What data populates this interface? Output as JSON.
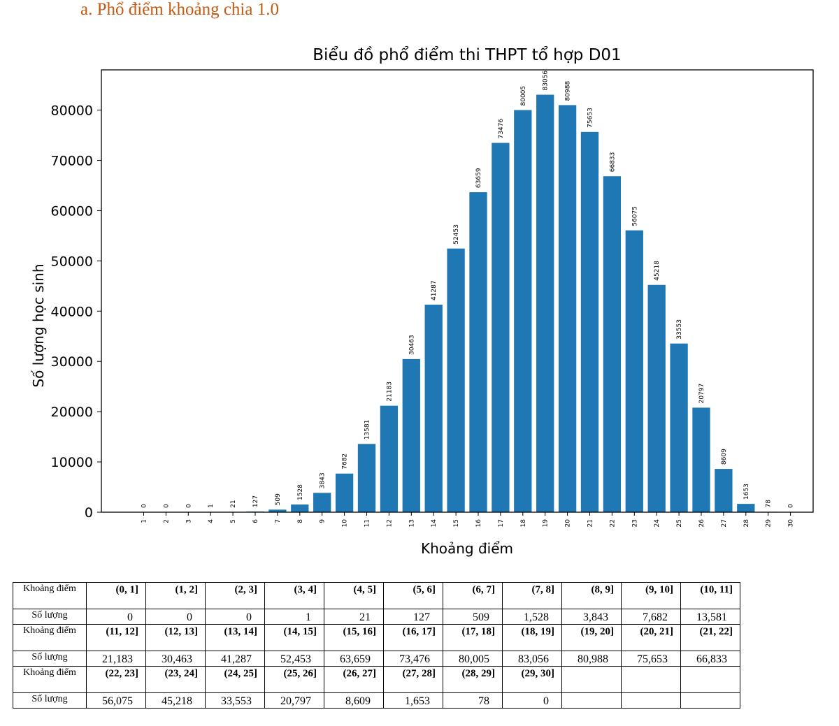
{
  "heading": "a.   Phổ điểm khoảng chia 1.0",
  "colors": {
    "bar": "#1f77b4",
    "heading": "#c55a11"
  },
  "chart_data": {
    "type": "bar",
    "title": "Biểu đồ phổ điểm thi THPT tổ hợp D01",
    "xlabel": "Khoảng điểm",
    "ylabel": "Số lượng học sinh",
    "categories": [
      "1",
      "2",
      "3",
      "4",
      "5",
      "6",
      "7",
      "8",
      "9",
      "10",
      "11",
      "12",
      "13",
      "14",
      "15",
      "16",
      "17",
      "18",
      "19",
      "20",
      "21",
      "22",
      "23",
      "24",
      "25",
      "26",
      "27",
      "28",
      "29",
      "30"
    ],
    "values": [
      0,
      0,
      0,
      1,
      21,
      127,
      509,
      1528,
      3843,
      7682,
      13581,
      21183,
      30463,
      41287,
      52453,
      63659,
      73476,
      80005,
      83056,
      80988,
      75653,
      66833,
      56075,
      45218,
      33553,
      20797,
      8609,
      1653,
      78,
      0
    ],
    "yticks": [
      "0",
      "10000",
      "20000",
      "30000",
      "40000",
      "50000",
      "60000",
      "70000",
      "80000"
    ],
    "ylim": [
      0,
      88000
    ],
    "legend": "none",
    "grid": false
  },
  "table": {
    "range_label": "Khoảng điểm",
    "count_label": "Số lượng",
    "blocks": [
      {
        "ranges": [
          "(0, 1]",
          "(1, 2]",
          "(2, 3]",
          "(3, 4]",
          "(4, 5]",
          "(5, 6]",
          "(6, 7]",
          "(7, 8]",
          "(8, 9]",
          "(9, 10]",
          "(10, 11]"
        ],
        "counts": [
          "0",
          "0",
          "0",
          "1",
          "21",
          "127",
          "509",
          "1,528",
          "3,843",
          "7,682",
          "13,581"
        ]
      },
      {
        "ranges": [
          "(11, 12]",
          "(12, 13]",
          "(13, 14]",
          "(14, 15]",
          "(15, 16]",
          "(16, 17]",
          "(17, 18]",
          "(18, 19]",
          "(19, 20]",
          "(20, 21]",
          "(21, 22]"
        ],
        "counts": [
          "21,183",
          "30,463",
          "41,287",
          "52,453",
          "63,659",
          "73,476",
          "80,005",
          "83,056",
          "80,988",
          "75,653",
          "66,833"
        ]
      },
      {
        "ranges": [
          "(22, 23]",
          "(23, 24]",
          "(24, 25]",
          "(25, 26]",
          "(26, 27]",
          "(27, 28]",
          "(28, 29]",
          "(29, 30]",
          "",
          "",
          ""
        ],
        "counts": [
          "56,075",
          "45,218",
          "33,553",
          "20,797",
          "8,609",
          "1,653",
          "78",
          "0",
          "",
          "",
          ""
        ]
      }
    ]
  }
}
